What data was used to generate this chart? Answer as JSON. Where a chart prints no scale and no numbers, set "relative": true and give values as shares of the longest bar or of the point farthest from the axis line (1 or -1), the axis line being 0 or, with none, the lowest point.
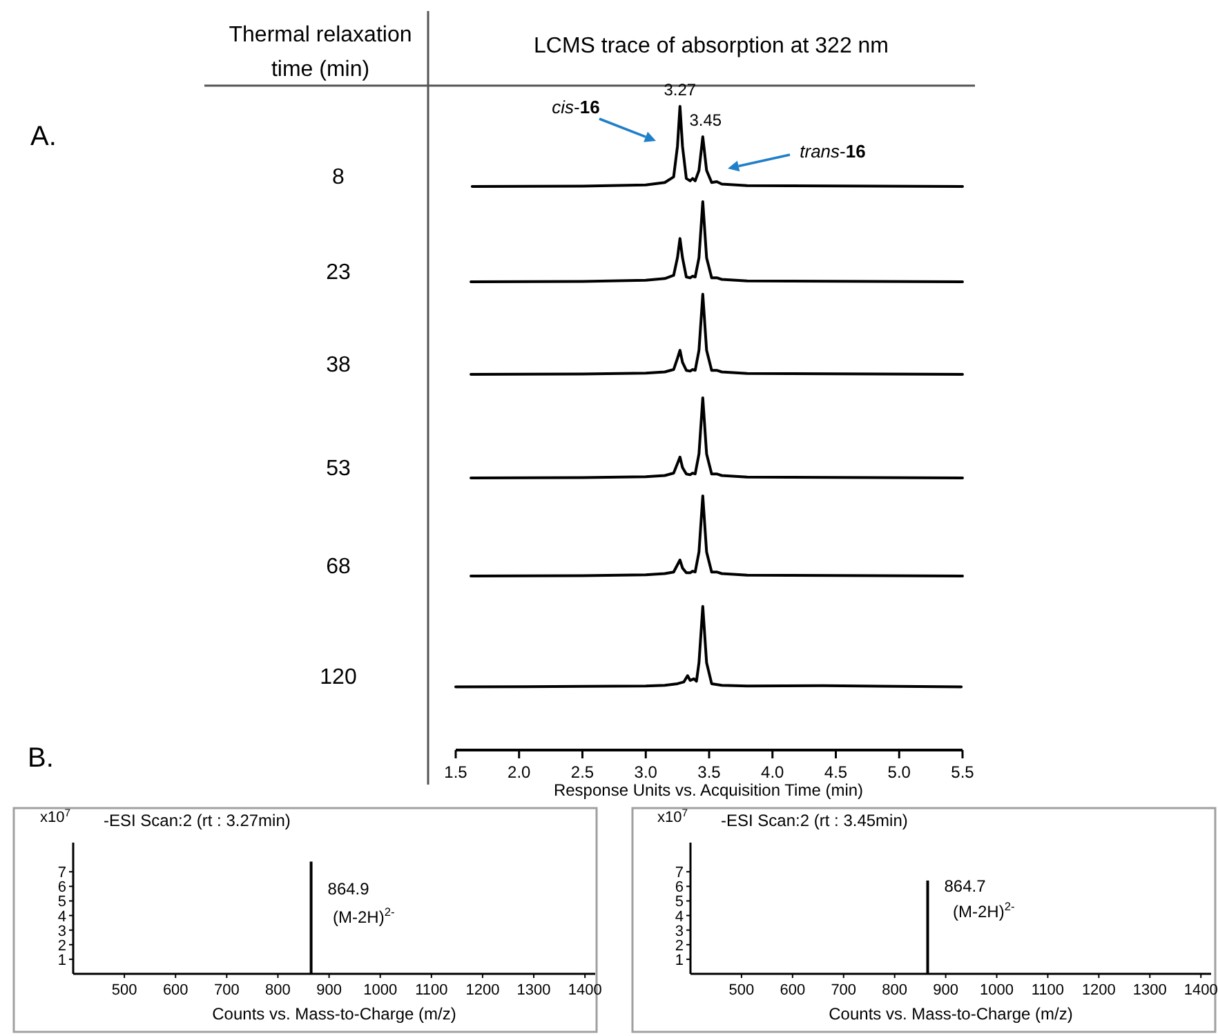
{
  "chart_data": [
    {
      "type": "line",
      "title": "LCMS trace of absorption at 322 nm",
      "ylabel": "8",
      "relative": true,
      "xlim": [
        1.5,
        5.5
      ],
      "tick_labels": false,
      "annotations": [
        "A.",
        "Thermal relaxation time (min)",
        {
          "text": "3.27",
          "x": 3.27,
          "y": 1
        },
        {
          "text": "3.45",
          "x": 3.45,
          "y": 0.62
        },
        "cis-16",
        "trans-16"
      ],
      "x": [
        1.63,
        2.5,
        3.0,
        3.15,
        3.22,
        3.25,
        3.27,
        3.29,
        3.32,
        3.35,
        3.37,
        3.39,
        3.42,
        3.45,
        3.48,
        3.52,
        3.56,
        3.6,
        3.8,
        5.5
      ],
      "series": [
        {
          "color": "#000000",
          "values": [
            0,
            0.005,
            0.02,
            0.05,
            0.12,
            0.5,
            1,
            0.5,
            0.1,
            0.07,
            0.1,
            0.07,
            0.2,
            0.62,
            0.2,
            0.05,
            0.06,
            0.03,
            0.01,
            0
          ]
        }
      ]
    },
    {
      "type": "line",
      "ylabel": "23",
      "relative": true,
      "xlim": [
        1.5,
        5.5
      ],
      "tick_labels": false,
      "x": [
        1.62,
        2.5,
        3.0,
        3.15,
        3.22,
        3.25,
        3.27,
        3.29,
        3.32,
        3.35,
        3.37,
        3.39,
        3.42,
        3.45,
        3.48,
        3.52,
        3.56,
        3.6,
        3.8,
        5.5
      ],
      "series": [
        {
          "color": "#000000",
          "values": [
            0,
            0.005,
            0.02,
            0.04,
            0.08,
            0.3,
            0.54,
            0.3,
            0.06,
            0.05,
            0.07,
            0.06,
            0.3,
            1,
            0.3,
            0.05,
            0.05,
            0.03,
            0.01,
            0
          ]
        }
      ]
    },
    {
      "type": "line",
      "ylabel": "38",
      "relative": true,
      "xlim": [
        1.5,
        5.5
      ],
      "tick_labels": false,
      "x": [
        1.62,
        2.5,
        3.0,
        3.15,
        3.22,
        3.25,
        3.27,
        3.29,
        3.32,
        3.35,
        3.37,
        3.39,
        3.42,
        3.45,
        3.48,
        3.52,
        3.56,
        3.6,
        3.8,
        5.5
      ],
      "series": [
        {
          "color": "#000000",
          "values": [
            0,
            0.005,
            0.015,
            0.03,
            0.06,
            0.2,
            0.3,
            0.15,
            0.05,
            0.04,
            0.06,
            0.05,
            0.3,
            1,
            0.3,
            0.05,
            0.05,
            0.03,
            0.01,
            0
          ]
        }
      ]
    },
    {
      "type": "line",
      "ylabel": "53",
      "relative": true,
      "xlim": [
        1.5,
        5.5
      ],
      "tick_labels": false,
      "x": [
        1.62,
        2.5,
        3.0,
        3.15,
        3.22,
        3.25,
        3.27,
        3.29,
        3.32,
        3.35,
        3.37,
        3.39,
        3.42,
        3.45,
        3.48,
        3.52,
        3.56,
        3.6,
        3.8,
        5.5
      ],
      "series": [
        {
          "color": "#000000",
          "values": [
            0,
            0.005,
            0.015,
            0.03,
            0.06,
            0.18,
            0.26,
            0.13,
            0.05,
            0.04,
            0.06,
            0.05,
            0.3,
            1,
            0.3,
            0.05,
            0.05,
            0.03,
            0.01,
            0
          ]
        }
      ]
    },
    {
      "type": "line",
      "ylabel": "68",
      "relative": true,
      "xlim": [
        1.5,
        5.5
      ],
      "tick_labels": false,
      "x": [
        1.62,
        2.5,
        3.0,
        3.15,
        3.22,
        3.25,
        3.27,
        3.29,
        3.32,
        3.35,
        3.37,
        3.39,
        3.42,
        3.45,
        3.48,
        3.52,
        3.56,
        3.6,
        3.8,
        5.5
      ],
      "series": [
        {
          "color": "#000000",
          "values": [
            0,
            0.005,
            0.015,
            0.03,
            0.05,
            0.14,
            0.2,
            0.1,
            0.04,
            0.04,
            0.06,
            0.05,
            0.3,
            1,
            0.3,
            0.05,
            0.05,
            0.03,
            0.01,
            0
          ]
        }
      ]
    },
    {
      "type": "line",
      "ylabel": "120",
      "relative": true,
      "xlim": [
        1.5,
        5.5
      ],
      "tick_labels": "x",
      "xticks": [
        {
          "value": 1.5,
          "label": "1.5"
        },
        {
          "value": 2,
          "label": "2.0"
        },
        {
          "value": 2.5,
          "label": "2.5"
        },
        {
          "value": 3,
          "label": "3.0"
        },
        {
          "value": 3.5,
          "label": "3.5"
        },
        {
          "value": 4,
          "label": "4.0"
        },
        {
          "value": 4.5,
          "label": "4.5"
        },
        {
          "value": 5,
          "label": "5.0"
        },
        {
          "value": 5.5,
          "label": "5.5"
        }
      ],
      "xlabel": "Response Units vs. Acquisition Time (min)",
      "x": [
        1.5,
        2.5,
        3.0,
        3.15,
        3.25,
        3.3,
        3.33,
        3.35,
        3.38,
        3.4,
        3.42,
        3.45,
        3.48,
        3.52,
        3.6,
        3.8,
        4.4,
        5.49
      ],
      "series": [
        {
          "color": "#000000",
          "values": [
            0.44,
            0.443,
            0.446,
            0.451,
            0.462,
            0.474,
            0.518,
            0.485,
            0.496,
            0.479,
            0.608,
            1,
            0.608,
            0.462,
            0.451,
            0.446,
            0.448,
            0.44
          ]
        }
      ]
    },
    {
      "type": "bar",
      "title": "-ESI Scan:2 (rt : 3.27min)",
      "ylabel": "x10$^{7}$",
      "xlabel": "Counts vs. Mass-to-Charge (m/z)",
      "xlim": [
        400,
        1420
      ],
      "xticks": [
        500,
        600,
        700,
        800,
        900,
        1000,
        1100,
        1200,
        1300,
        1400
      ],
      "ylim": [
        0,
        9
      ],
      "yticks": [
        1,
        2,
        3,
        4,
        5,
        6,
        7
      ],
      "annotations": [
        "B.",
        {
          "text": "864.9",
          "x": 864.9,
          "y": 7.7
        },
        "(M-2H)$^{2-}$"
      ],
      "x": [
        864.9
      ],
      "series": [
        {
          "color": "#000000",
          "values": [
            7.7
          ]
        }
      ]
    },
    {
      "type": "bar",
      "title": "-ESI Scan:2 (rt : 3.45min)",
      "ylabel": "x10$^{7}$",
      "xlabel": "Counts vs. Mass-to-Charge (m/z)",
      "xlim": [
        400,
        1420
      ],
      "xticks": [
        500,
        600,
        700,
        800,
        900,
        1000,
        1100,
        1200,
        1300,
        1400
      ],
      "ylim": [
        0,
        9
      ],
      "yticks": [
        1,
        2,
        3,
        4,
        5,
        6,
        7
      ],
      "annotations": [
        {
          "text": "864.7",
          "x": 864.7,
          "y": 6.4
        },
        "(M-2H)$^{2-}$"
      ],
      "x": [
        864.7
      ],
      "series": [
        {
          "color": "#000000",
          "values": [
            6.4
          ]
        }
      ]
    }
  ]
}
